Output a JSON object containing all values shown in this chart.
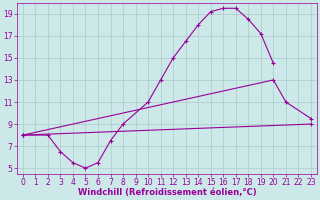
{
  "bg_color": "#cce8e8",
  "grid_color": "#aacccc",
  "line_color": "#990099",
  "xlabel": "Windchill (Refroidissement éolien,°C)",
  "xlim": [
    -0.5,
    23.5
  ],
  "ylim": [
    4.5,
    20.0
  ],
  "yticks": [
    5,
    7,
    9,
    11,
    13,
    15,
    17,
    19
  ],
  "xticks": [
    0,
    1,
    2,
    3,
    4,
    5,
    6,
    7,
    8,
    9,
    10,
    11,
    12,
    13,
    14,
    15,
    16,
    17,
    18,
    19,
    20,
    21,
    22,
    23
  ],
  "line1_x": [
    0,
    2,
    3,
    4,
    5,
    6,
    7,
    8,
    10,
    11,
    12,
    13,
    14,
    15,
    16,
    17,
    18,
    19,
    20
  ],
  "line1_y": [
    8.0,
    8.0,
    6.5,
    5.5,
    5.0,
    5.5,
    7.5,
    9.0,
    11.0,
    13.0,
    15.0,
    16.5,
    18.0,
    19.2,
    19.5,
    19.5,
    18.5,
    17.2,
    14.5
  ],
  "line2_x": [
    0,
    23
  ],
  "line2_y": [
    8.0,
    9.0
  ],
  "line3_x": [
    0,
    20,
    21,
    23
  ],
  "line3_y": [
    8.0,
    13.0,
    11.0,
    9.5
  ]
}
